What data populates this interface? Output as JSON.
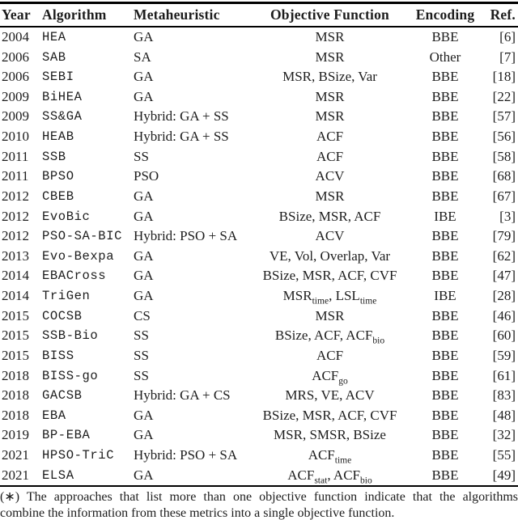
{
  "colors": {
    "text": "#1d1d1d",
    "rule": "#000000",
    "background": "#ffffff"
  },
  "table": {
    "headers": [
      "Year",
      "Algorithm",
      "Metaheuristic",
      "Objective Function",
      "Encoding",
      "Ref."
    ],
    "rows": [
      {
        "year": "2004",
        "algorithm": "HEA",
        "metaheuristic": "GA",
        "objective": "MSR",
        "encoding": "BBE",
        "ref": "[6]"
      },
      {
        "year": "2006",
        "algorithm": "SAB",
        "metaheuristic": "SA",
        "objective": "MSR",
        "encoding": "Other",
        "ref": "[7]"
      },
      {
        "year": "2006",
        "algorithm": "SEBI",
        "metaheuristic": "GA",
        "objective": "MSR, BSize, Var",
        "encoding": "BBE",
        "ref": "[18]"
      },
      {
        "year": "2009",
        "algorithm": "BiHEA",
        "metaheuristic": "GA",
        "objective": "MSR",
        "encoding": "BBE",
        "ref": "[22]"
      },
      {
        "year": "2009",
        "algorithm": "SS&GA",
        "metaheuristic": "Hybrid: GA + SS",
        "objective": "MSR",
        "encoding": "BBE",
        "ref": "[57]"
      },
      {
        "year": "2010",
        "algorithm": "HEAB",
        "metaheuristic": "Hybrid: GA + SS",
        "objective": "ACF",
        "encoding": "BBE",
        "ref": "[56]"
      },
      {
        "year": "2011",
        "algorithm": "SSB",
        "metaheuristic": "SS",
        "objective": "ACF",
        "encoding": "BBE",
        "ref": "[58]"
      },
      {
        "year": "2011",
        "algorithm": "BPSO",
        "metaheuristic": "PSO",
        "objective": "ACV",
        "encoding": "BBE",
        "ref": "[68]"
      },
      {
        "year": "2012",
        "algorithm": "CBEB",
        "metaheuristic": "GA",
        "objective": "MSR",
        "encoding": "BBE",
        "ref": "[67]"
      },
      {
        "year": "2012",
        "algorithm": "EvoBic",
        "metaheuristic": "GA",
        "objective": "BSize, MSR, ACF",
        "encoding": "IBE",
        "ref": "[3]"
      },
      {
        "year": "2012",
        "algorithm": "PSO-SA-BIC",
        "metaheuristic": "Hybrid: PSO + SA",
        "objective": "ACV",
        "encoding": "BBE",
        "ref": "[79]"
      },
      {
        "year": "2013",
        "algorithm": "Evo-Bexpa",
        "metaheuristic": "GA",
        "objective": "VE, Vol, Overlap, Var",
        "encoding": "BBE",
        "ref": "[62]"
      },
      {
        "year": "2014",
        "algorithm": "EBACross",
        "metaheuristic": "GA",
        "objective": "BSize, MSR, ACF, CVF",
        "encoding": "BBE",
        "ref": "[47]"
      },
      {
        "year": "2014",
        "algorithm": "TriGen",
        "metaheuristic": "GA",
        "objective": "MSR_{time}, LSL_{time}",
        "encoding": "IBE",
        "ref": "[28]"
      },
      {
        "year": "2015",
        "algorithm": "COCSB",
        "metaheuristic": "CS",
        "objective": "MSR",
        "encoding": "BBE",
        "ref": "[46]"
      },
      {
        "year": "2015",
        "algorithm": "SSB-Bio",
        "metaheuristic": "SS",
        "objective": "BSize, ACF, ACF_{bio}",
        "encoding": "BBE",
        "ref": "[60]"
      },
      {
        "year": "2015",
        "algorithm": "BISS",
        "metaheuristic": "SS",
        "objective": "ACF",
        "encoding": "BBE",
        "ref": "[59]"
      },
      {
        "year": "2018",
        "algorithm": "BISS-go",
        "metaheuristic": "SS",
        "objective": "ACF_{go}",
        "encoding": "BBE",
        "ref": "[61]"
      },
      {
        "year": "2018",
        "algorithm": "GACSB",
        "metaheuristic": "Hybrid: GA + CS",
        "objective": "MRS, VE, ACV",
        "encoding": "BBE",
        "ref": "[83]"
      },
      {
        "year": "2018",
        "algorithm": "EBA",
        "metaheuristic": "GA",
        "objective": "BSize, MSR, ACF, CVF",
        "encoding": "BBE",
        "ref": "[48]"
      },
      {
        "year": "2019",
        "algorithm": "BP-EBA",
        "metaheuristic": "GA",
        "objective": "MSR, SMSR, BSize",
        "encoding": "BBE",
        "ref": "[32]"
      },
      {
        "year": "2021",
        "algorithm": "HPSO-TriC",
        "metaheuristic": "Hybrid: PSO + SA",
        "objective": "ACF_{time}",
        "encoding": "BBE",
        "ref": "[55]"
      },
      {
        "year": "2021",
        "algorithm": "ELSA",
        "metaheuristic": "GA",
        "objective": "ACF_{stat}, ACF_{bio}",
        "encoding": "BBE",
        "ref": "[49]"
      }
    ]
  },
  "footnote": {
    "lines": [
      "(∗) The approaches that list more than one objective function indicate that the algorithms",
      "combine the information from these metrics into a single objective function."
    ]
  }
}
